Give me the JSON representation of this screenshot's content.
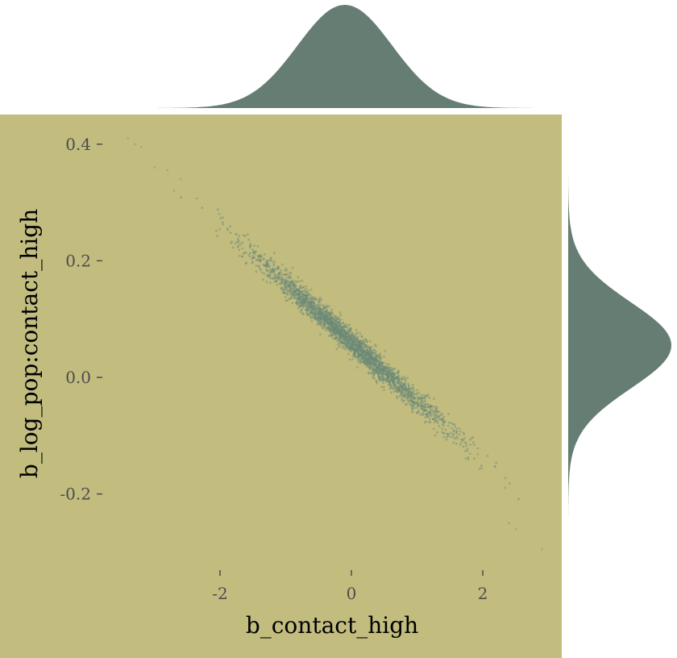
{
  "chart_data": {
    "type": "scatter",
    "title": "",
    "xlabel": "b_contact_high",
    "ylabel": "b_log_pop:contact_high",
    "x_ticks": [
      -2,
      0,
      2
    ],
    "x_tick_labels": [
      "-2",
      "0",
      "2"
    ],
    "y_ticks": [
      0.4,
      0.2,
      0.0,
      -0.2
    ],
    "y_tick_labels": [
      "0.4",
      "0.2",
      "0.0",
      "-0.2"
    ],
    "xlim": [
      -3.5,
      3.2
    ],
    "ylim": [
      -0.38,
      0.445
    ],
    "grid": false,
    "legend": "none",
    "marginal_plots": "density on top (x) and right (y)",
    "point_cloud": {
      "description": "posterior samples",
      "x_mean": 0,
      "x_sd": 0.75,
      "regression_y_intercept": 0.06,
      "regression_slope": -0.1,
      "residual_sd": 0.011
    },
    "outlier_points": [
      {
        "x": -3.4,
        "y": 0.41
      },
      {
        "x": -3.3,
        "y": 0.4
      },
      {
        "x": -3.2,
        "y": 0.395
      },
      {
        "x": -3.0,
        "y": 0.36
      },
      {
        "x": -2.8,
        "y": 0.355
      },
      {
        "x": -2.6,
        "y": 0.34
      },
      {
        "x": -2.7,
        "y": 0.32
      },
      {
        "x": 2.9,
        "y": -0.295
      },
      {
        "x": 2.4,
        "y": -0.25
      },
      {
        "x": 2.5,
        "y": -0.26
      }
    ],
    "colors": {
      "panel_background": "#c2bc7f",
      "points": "#6b8a78",
      "density_fill": "#667d73",
      "page_background": "#ffffff"
    }
  }
}
